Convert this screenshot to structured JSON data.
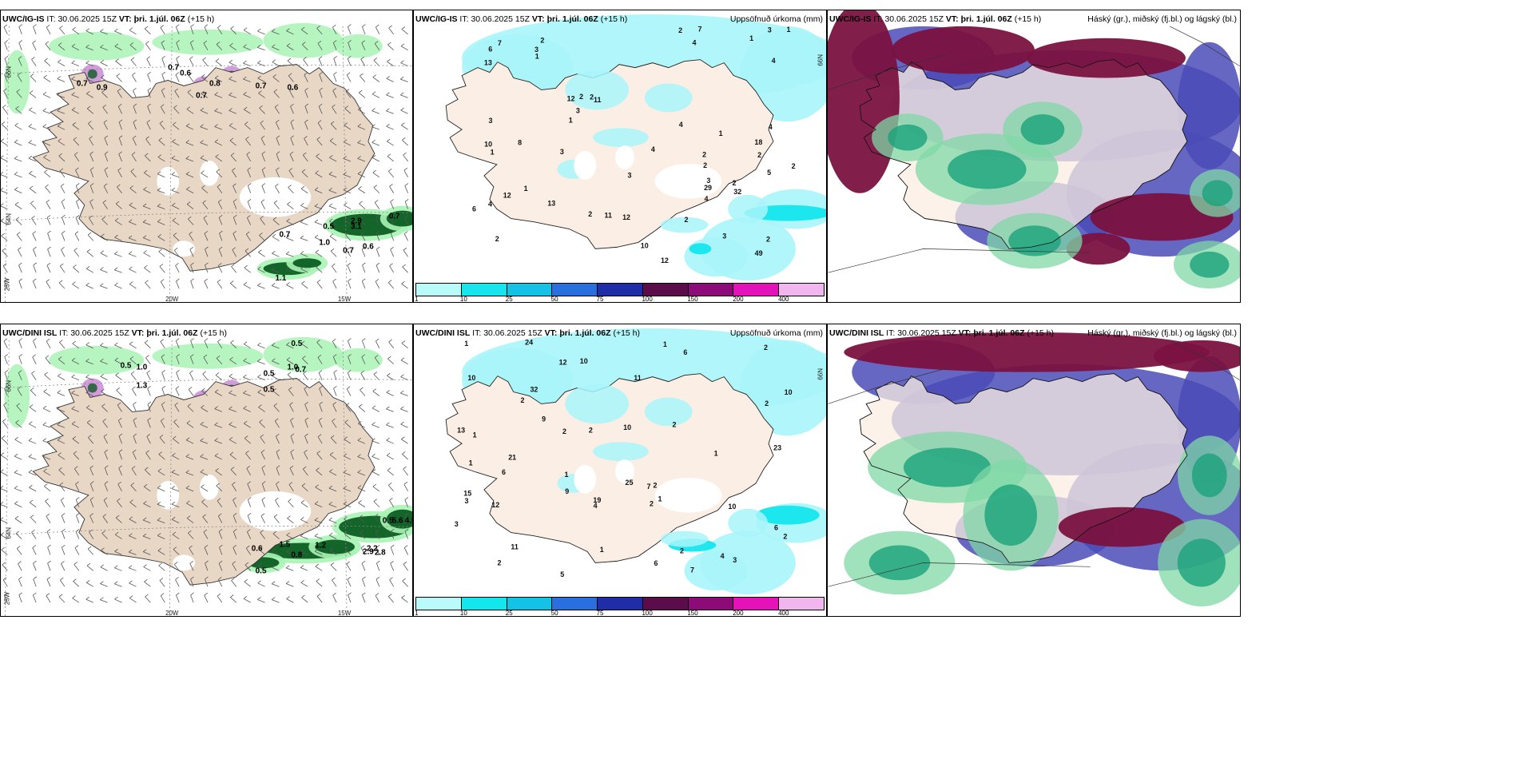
{
  "colors": {
    "land": "#e9d7c6",
    "land_pale": "#fbeee4",
    "sea": "#ffffff",
    "precip_light": "#a9f3b5",
    "precip_dark": "#0c5d22",
    "precip_cyan": "#a8f5fa",
    "cloud_high": "#7a1240",
    "cloud_mid": "#4b4bb8",
    "cloud_low": "#1aa37a"
  },
  "legend": {
    "colors": [
      "#b9fbfb",
      "#14e6ee",
      "#12c3e6",
      "#2a6fe0",
      "#1f2ea8",
      "#5c0c4a",
      "#8c0b78",
      "#e412b8",
      "#f2b6ee"
    ],
    "ticks": [
      "1",
      "10",
      "25",
      "50",
      "75",
      "100",
      "150",
      "200",
      "400"
    ]
  },
  "rows": [
    {
      "model": "UWC/IG-IS",
      "it_label": "IT:",
      "it_value": "30.06.2025 15Z",
      "vt_label": "VT:",
      "vt_value": "þri. 1.júl. 06Z",
      "lead": "(+15 h)",
      "precip_title": "Uppsöfnuð úrkoma (mm)",
      "cloud_title": "Háský (gr.), miðský (fj.bl.) og lágský (bl.)",
      "lat_labels": [
        "66N",
        "64N"
      ],
      "lon_labels": [
        "25W",
        "20W",
        "15W"
      ],
      "wind_values": [
        "0.7",
        "0.9",
        "0.7",
        "0.6",
        "0.7",
        "0.8",
        "0.7",
        "0.6",
        "0.5",
        "2.9",
        "3.1",
        "0.7",
        "0.7",
        "1.0",
        "0.7",
        "0.6",
        "1.1"
      ],
      "precip_values": [
        "2",
        "2",
        "2",
        "2",
        "11",
        "3",
        "4",
        "4",
        "12",
        "12",
        "13",
        "10",
        "6",
        "2",
        "2",
        "4",
        "3",
        "4",
        "2",
        "1",
        "1",
        "1",
        "1",
        "5",
        "2",
        "3",
        "3",
        "1",
        "1",
        "1",
        "10",
        "2",
        "3",
        "3",
        "18",
        "32",
        "29",
        "8",
        "12",
        "12",
        "4",
        "7",
        "49",
        "11",
        "2",
        "13",
        "6",
        "7",
        "4",
        "3",
        "2",
        "2",
        "3",
        "2",
        "4"
      ]
    },
    {
      "model": "UWC/DINI ISL",
      "it_label": "IT:",
      "it_value": "30.06.2025 15Z",
      "vt_label": "VT:",
      "vt_value": "þri. 1.júl. 06Z",
      "lead": "(+15 h)",
      "precip_title": "Uppsöfnuð úrkoma (mm)",
      "cloud_title": "Háský (gr.), miðský (fj.bl.) og lágský (bl.)",
      "lat_labels": [
        "66N",
        "64N"
      ],
      "lon_labels": [
        "25W",
        "20W",
        "15W"
      ],
      "wind_values": [
        "0.5",
        "1.0",
        "1.3",
        "0.5",
        "1.0",
        "0.7",
        "0.5",
        "0.5",
        "1.5",
        "0.6",
        "0.8",
        "0.5",
        "0.5",
        "1.2",
        "2.2",
        "2.9",
        "5.6",
        "4.5",
        "2.8"
      ],
      "precip_values": [
        "1",
        "1",
        "2",
        "2",
        "1",
        "2",
        "1",
        "2",
        "2",
        "10",
        "11",
        "13",
        "12",
        "19",
        "10",
        "6",
        "2",
        "3",
        "5",
        "2",
        "15",
        "7",
        "4",
        "2",
        "1",
        "1",
        "2",
        "1",
        "6",
        "2",
        "23",
        "9",
        "10",
        "10",
        "25",
        "24",
        "7",
        "3",
        "3",
        "32",
        "21",
        "11",
        "10",
        "12",
        "6",
        "9",
        "4",
        "6",
        "1",
        "2"
      ]
    }
  ]
}
